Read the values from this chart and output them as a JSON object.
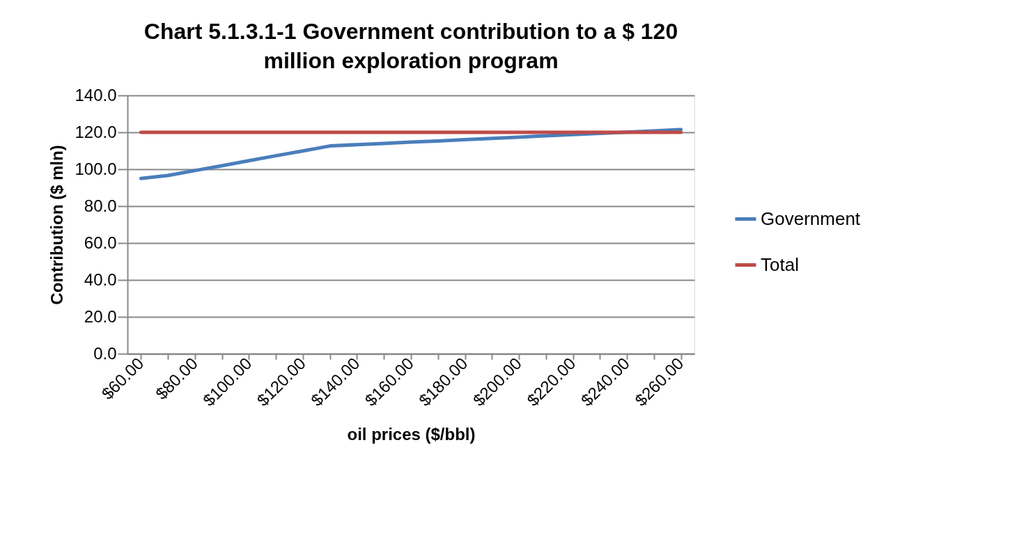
{
  "chart_data": {
    "type": "line",
    "title": "Chart 5.1.3.1-1 Government contribution to a $ 120 million exploration program",
    "xlabel": "oil prices ($/bbl)",
    "ylabel": "Contribution ($ mln)",
    "categories": [
      "$60.00",
      null,
      "$80.00",
      null,
      "$100.00",
      null,
      "$120.00",
      null,
      "$140.00",
      null,
      "$160.00",
      null,
      "$180.00",
      null,
      "$200.00",
      null,
      "$220.00",
      null,
      "$240.00",
      null,
      "$260.00"
    ],
    "series": [
      {
        "name": "Government",
        "color": "#4a7ebb",
        "values": [
          95.0,
          96.6,
          99.3,
          101.9,
          104.6,
          107.3,
          109.9,
          112.6,
          113.3,
          114.0,
          114.7,
          115.3,
          116.0,
          116.7,
          117.4,
          118.1,
          118.8,
          119.4,
          120.1,
          120.8,
          121.5
        ]
      },
      {
        "name": "Total",
        "color": "#be4b48",
        "values": [
          120,
          120,
          120,
          120,
          120,
          120,
          120,
          120,
          120,
          120,
          120,
          120,
          120,
          120,
          120,
          120,
          120,
          120,
          120,
          120,
          120
        ]
      }
    ],
    "ylim": [
      0,
      140
    ],
    "yticks": [
      {
        "value": 0,
        "label": "0.0"
      },
      {
        "value": 20,
        "label": "20.0"
      },
      {
        "value": 40,
        "label": "40.0"
      },
      {
        "value": 60,
        "label": "60.0"
      },
      {
        "value": 80,
        "label": "80.0"
      },
      {
        "value": 100,
        "label": "100.0"
      },
      {
        "value": 120,
        "label": "120.0"
      },
      {
        "value": 140,
        "label": "140.0"
      }
    ],
    "grid": "y",
    "legend": "right",
    "marker": "none",
    "line_style": "solid"
  }
}
